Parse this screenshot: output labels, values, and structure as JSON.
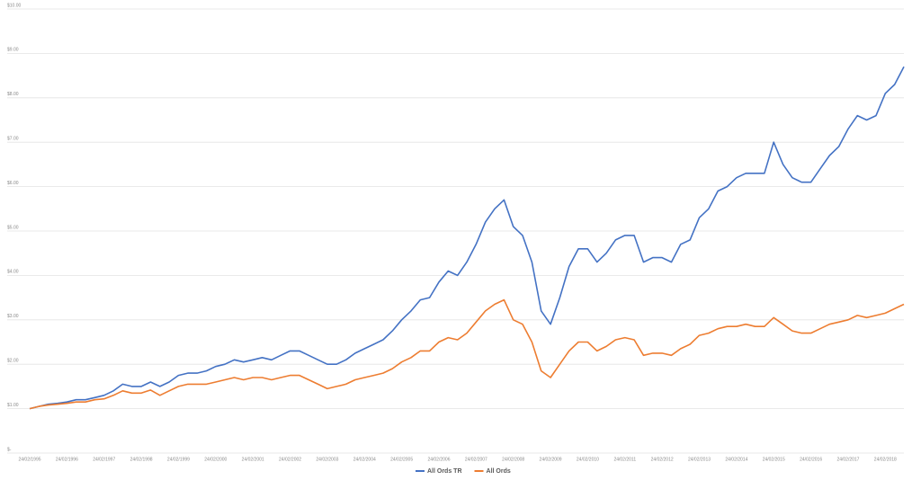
{
  "chart_data": {
    "type": "line",
    "categories": [
      "24/02/1995",
      null,
      null,
      null,
      "24/02/1996",
      null,
      null,
      null,
      "24/02/1997",
      null,
      null,
      null,
      "24/02/1998",
      null,
      null,
      null,
      "24/02/1999",
      null,
      null,
      null,
      "24/02/2000",
      null,
      null,
      null,
      "24/02/2001",
      null,
      null,
      null,
      "24/02/2002",
      null,
      null,
      null,
      "24/02/2003",
      null,
      null,
      null,
      "24/02/2004",
      null,
      null,
      null,
      "24/02/2005",
      null,
      null,
      null,
      "24/02/2006",
      null,
      null,
      null,
      "24/02/2007",
      null,
      null,
      null,
      "24/02/2008",
      null,
      null,
      null,
      "24/02/2009",
      null,
      null,
      null,
      "24/02/2010",
      null,
      null,
      null,
      "24/02/2011",
      null,
      null,
      null,
      "24/02/2012",
      null,
      null,
      null,
      "24/02/2013",
      null,
      null,
      null,
      "24/02/2014",
      null,
      null,
      null,
      "24/02/2015",
      null,
      null,
      null,
      "24/02/2016",
      null,
      null,
      null,
      "24/02/2017",
      null,
      null,
      null,
      "24/02/2018",
      null,
      null
    ],
    "series": [
      {
        "name": "All Ords TR",
        "color": "#4472c4",
        "values": [
          1.0,
          1.05,
          1.1,
          1.12,
          1.15,
          1.2,
          1.2,
          1.25,
          1.3,
          1.4,
          1.55,
          1.5,
          1.5,
          1.6,
          1.5,
          1.6,
          1.75,
          1.8,
          1.8,
          1.85,
          1.95,
          2.0,
          2.1,
          2.05,
          2.1,
          2.15,
          2.1,
          2.2,
          2.3,
          2.3,
          2.2,
          2.1,
          2.0,
          2.0,
          2.1,
          2.25,
          2.35,
          2.45,
          2.55,
          2.75,
          3.0,
          3.2,
          3.45,
          3.5,
          3.85,
          4.1,
          4.0,
          4.3,
          4.7,
          5.2,
          5.5,
          5.7,
          5.1,
          4.9,
          4.3,
          3.2,
          2.9,
          3.5,
          4.2,
          4.6,
          4.6,
          4.3,
          4.5,
          4.8,
          4.9,
          4.9,
          4.3,
          4.4,
          4.4,
          4.3,
          4.7,
          4.8,
          5.3,
          5.5,
          5.9,
          6.0,
          6.2,
          6.3,
          6.3,
          6.3,
          7.0,
          6.5,
          6.2,
          6.1,
          6.1,
          6.4,
          6.7,
          6.9,
          7.3,
          7.6,
          7.5,
          7.6,
          8.1,
          8.3,
          8.7
        ]
      },
      {
        "name": "All Ords",
        "color": "#ed7d31",
        "values": [
          1.0,
          1.05,
          1.08,
          1.1,
          1.12,
          1.15,
          1.15,
          1.2,
          1.22,
          1.3,
          1.4,
          1.35,
          1.35,
          1.42,
          1.3,
          1.4,
          1.5,
          1.55,
          1.55,
          1.55,
          1.6,
          1.65,
          1.7,
          1.65,
          1.7,
          1.7,
          1.65,
          1.7,
          1.75,
          1.75,
          1.65,
          1.55,
          1.45,
          1.5,
          1.55,
          1.65,
          1.7,
          1.75,
          1.8,
          1.9,
          2.05,
          2.15,
          2.3,
          2.3,
          2.5,
          2.6,
          2.55,
          2.7,
          2.95,
          3.2,
          3.35,
          3.45,
          3.0,
          2.9,
          2.5,
          1.85,
          1.7,
          2.0,
          2.3,
          2.5,
          2.5,
          2.3,
          2.4,
          2.55,
          2.6,
          2.55,
          2.2,
          2.25,
          2.25,
          2.2,
          2.35,
          2.45,
          2.65,
          2.7,
          2.8,
          2.85,
          2.85,
          2.9,
          2.85,
          2.85,
          3.05,
          2.9,
          2.75,
          2.7,
          2.7,
          2.8,
          2.9,
          2.95,
          3.0,
          3.1,
          3.05,
          3.1,
          3.15,
          3.25,
          3.35
        ]
      }
    ],
    "ylim": [
      0,
      10
    ],
    "yticks": [
      {
        "value": 0,
        "label": "$-"
      },
      {
        "value": 1,
        "label": "$1.00"
      },
      {
        "value": 2,
        "label": "$2.00"
      },
      {
        "value": 3,
        "label": "$3.00"
      },
      {
        "value": 4,
        "label": "$4.00"
      },
      {
        "value": 5,
        "label": "$5.00"
      },
      {
        "value": 6,
        "label": "$6.00"
      },
      {
        "value": 7,
        "label": "$7.00"
      },
      {
        "value": 8,
        "label": "$8.00"
      },
      {
        "value": 9,
        "label": "$9.00"
      },
      {
        "value": 10,
        "label": "$10.00"
      }
    ],
    "grid": true,
    "legend": "bottom"
  }
}
